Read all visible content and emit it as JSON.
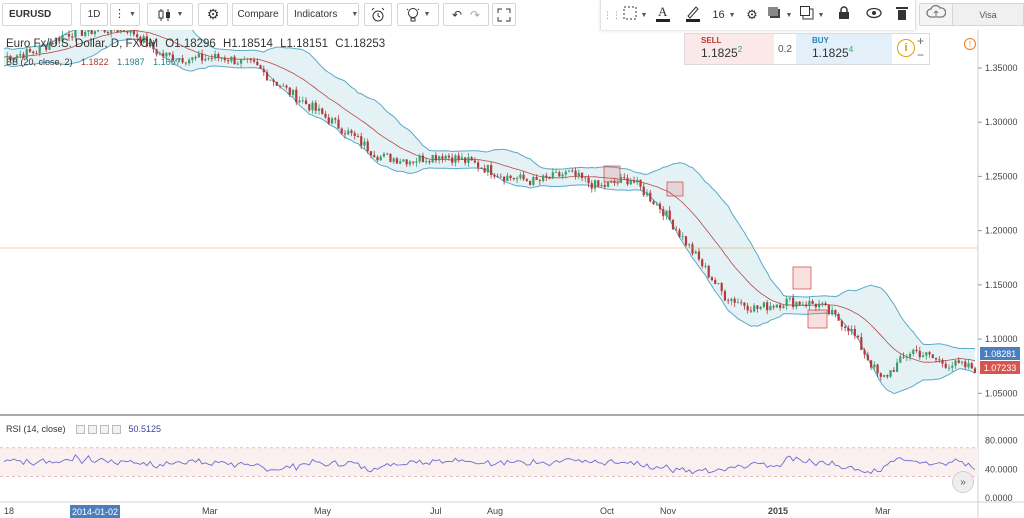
{
  "toolbar": {
    "symbol": "EURUSD",
    "interval": "1D",
    "compare_label": "Compare",
    "indicators_label": "Indicators",
    "font_size": "16",
    "layout_name": "Visa"
  },
  "legend": {
    "title": "Euro Fx/U.S. Dollar, D, FXCM",
    "open": "O1.18296",
    "high": "H1.18514",
    "low": "L1.18151",
    "close": "C1.18253",
    "bb_label": "BB (20, close, 2)",
    "bb_basis": "1.1822",
    "bb_upper": "1.1987",
    "bb_lower": "1.1657"
  },
  "trade": {
    "sell_label": "SELL",
    "sell_price_main": "1.1825",
    "sell_price_sup": "2",
    "spread": "0.2",
    "buy_label": "BUY",
    "buy_price_main": "1.1825",
    "buy_price_sup": "4"
  },
  "price_scale": [
    "1.35000",
    "1.30000",
    "1.25000",
    "1.20000",
    "1.15000",
    "1.10000",
    "1.05000"
  ],
  "price_badges": {
    "blue": "1.08281",
    "red": "1.07233"
  },
  "rsi": {
    "label": "RSI (14, close)",
    "value": "50.5125",
    "scale": [
      "80.0000",
      "40.0000",
      "0.0000"
    ]
  },
  "time_axis": [
    "18",
    "Mar",
    "May",
    "Jul",
    "Aug",
    "Oct",
    "Nov",
    "2015",
    "Mar"
  ],
  "selected_date": "2014-01-02",
  "colors": {
    "bull": "#3c9c6c",
    "bear": "#b13a3a",
    "band_fill": "#e4f2f6",
    "band_line": "#5aa9c8",
    "basis": "#b84848",
    "rsi_line": "#6b6bd0",
    "rsi_band": "#fbf0f0"
  },
  "chart_data": {
    "type": "candlestick",
    "series_name": "EURUSD",
    "x": [
      "2014-01",
      "2014-02",
      "2014-03",
      "2014-04",
      "2014-05",
      "2014-06",
      "2014-07",
      "2014-08",
      "2014-09",
      "2014-10",
      "2014-11",
      "2014-12",
      "2015-01",
      "2015-02",
      "2015-03"
    ],
    "close_path": [
      1.36,
      1.365,
      1.382,
      1.385,
      1.386,
      1.362,
      1.358,
      1.36,
      1.352,
      1.33,
      1.31,
      1.29,
      1.268,
      1.265,
      1.27,
      1.262,
      1.25,
      1.245,
      1.253,
      1.24,
      1.248,
      1.22,
      1.18,
      1.14,
      1.128,
      1.135,
      1.132,
      1.11,
      1.062,
      1.09,
      1.078,
      1.073
    ],
    "ylim": [
      1.03,
      1.385
    ],
    "rsi_ylim": [
      0,
      100
    ],
    "rsi_band": [
      30,
      70
    ]
  }
}
